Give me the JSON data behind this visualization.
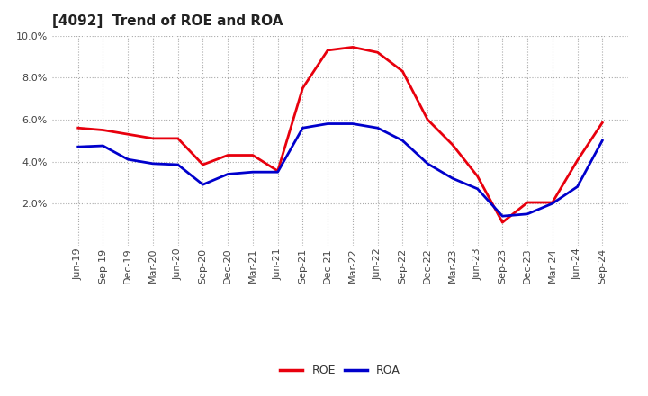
{
  "title": "[4092]  Trend of ROE and ROA",
  "x_labels": [
    "Jun-19",
    "Sep-19",
    "Dec-19",
    "Mar-20",
    "Jun-20",
    "Sep-20",
    "Dec-20",
    "Mar-21",
    "Jun-21",
    "Sep-21",
    "Dec-21",
    "Mar-22",
    "Jun-22",
    "Sep-22",
    "Dec-22",
    "Mar-23",
    "Jun-23",
    "Sep-23",
    "Dec-23",
    "Mar-24",
    "Jun-24",
    "Sep-24"
  ],
  "roe": [
    5.6,
    5.5,
    5.3,
    5.1,
    5.1,
    3.85,
    4.3,
    4.3,
    3.55,
    7.5,
    9.3,
    9.45,
    9.2,
    8.3,
    6.0,
    4.8,
    3.3,
    1.1,
    2.05,
    2.05,
    4.05,
    5.85
  ],
  "roa": [
    4.7,
    4.75,
    4.1,
    3.9,
    3.85,
    2.9,
    3.4,
    3.5,
    3.5,
    5.6,
    5.8,
    5.8,
    5.6,
    5.0,
    3.9,
    3.2,
    2.7,
    1.4,
    1.5,
    2.0,
    2.8,
    5.0
  ],
  "roe_color": "#e8000d",
  "roa_color": "#0000cc",
  "ylim": [
    0.0,
    10.0
  ],
  "yticks": [
    2.0,
    4.0,
    6.0,
    8.0,
    10.0
  ],
  "grid_color": "#aaaaaa",
  "bg_color": "#ffffff",
  "plot_bg_color": "#ffffff",
  "line_width": 2.0,
  "title_fontsize": 11,
  "tick_fontsize": 8,
  "legend_fontsize": 9
}
